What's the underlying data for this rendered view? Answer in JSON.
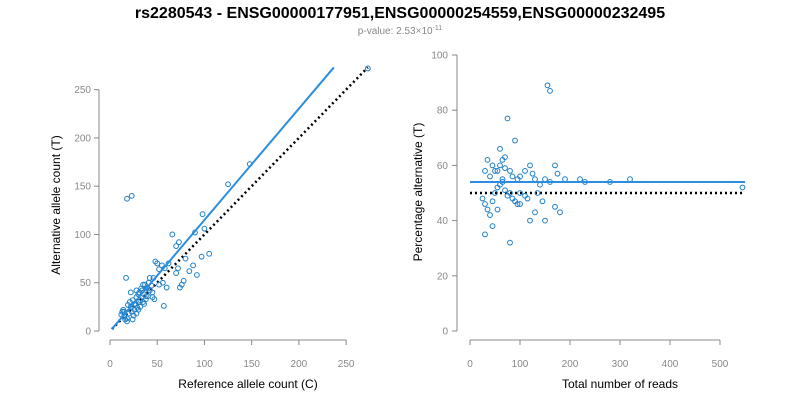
{
  "title": "rs2280543 - ENSG00000177951,ENSG00000254559,ENSG00000232495",
  "subtitle": {
    "prefix": "p-value: 2.53×10",
    "exponent": "-11"
  },
  "colors": {
    "points": "#1e7fc8",
    "fit": "#2b8ddf",
    "reference": "#000000",
    "axis": "#888888"
  },
  "chart_data": [
    {
      "type": "scatter",
      "xlabel": "Reference allele count (C)",
      "ylabel": "Alternative allele count (T)",
      "xlim": [
        0,
        270
      ],
      "ylim": [
        0,
        260
      ],
      "xticks": [
        "0",
        "50",
        "100",
        "150",
        "200",
        "250"
      ],
      "yticks": [
        "0",
        "50",
        "100",
        "150",
        "200",
        "250"
      ],
      "xtick_values": [
        0,
        50,
        100,
        150,
        200,
        250
      ],
      "ytick_values": [
        0,
        50,
        100,
        150,
        200,
        250
      ],
      "fit_line": {
        "x": [
          2,
          237
        ],
        "y": [
          2,
          273
        ]
      },
      "reference_line": {
        "x": [
          2,
          273
        ],
        "y": [
          2,
          273
        ]
      },
      "points": [
        [
          18,
          137
        ],
        [
          23,
          140
        ],
        [
          17,
          55
        ],
        [
          12,
          17
        ],
        [
          13,
          20
        ],
        [
          15,
          15
        ],
        [
          14,
          22
        ],
        [
          16,
          12
        ],
        [
          18,
          13
        ],
        [
          20,
          18
        ],
        [
          19,
          27
        ],
        [
          21,
          30
        ],
        [
          22,
          25
        ],
        [
          23,
          20
        ],
        [
          24,
          32
        ],
        [
          25,
          16
        ],
        [
          26,
          22
        ],
        [
          27,
          28
        ],
        [
          28,
          35
        ],
        [
          29,
          24
        ],
        [
          30,
          38
        ],
        [
          31,
          40
        ],
        [
          32,
          32
        ],
        [
          33,
          44
        ],
        [
          34,
          42
        ],
        [
          35,
          30
        ],
        [
          36,
          38
        ],
        [
          37,
          48
        ],
        [
          38,
          33
        ],
        [
          39,
          45
        ],
        [
          40,
          36
        ],
        [
          41,
          50
        ],
        [
          42,
          42
        ],
        [
          44,
          47
        ],
        [
          45,
          35
        ],
        [
          47,
          33
        ],
        [
          48,
          72
        ],
        [
          50,
          70
        ],
        [
          52,
          64
        ],
        [
          55,
          68
        ],
        [
          57,
          26
        ],
        [
          58,
          65
        ],
        [
          62,
          70
        ],
        [
          66,
          100
        ],
        [
          70,
          88
        ],
        [
          72,
          65
        ],
        [
          73,
          92
        ],
        [
          76,
          48
        ],
        [
          78,
          52
        ],
        [
          80,
          75
        ],
        [
          84,
          62
        ],
        [
          88,
          68
        ],
        [
          90,
          102
        ],
        [
          92,
          58
        ],
        [
          97,
          77
        ],
        [
          98,
          121
        ],
        [
          100,
          106
        ],
        [
          105,
          80
        ],
        [
          125,
          152
        ],
        [
          148,
          173
        ],
        [
          273,
          272
        ],
        [
          22,
          40
        ],
        [
          28,
          42
        ],
        [
          35,
          48
        ],
        [
          42,
          55
        ],
        [
          46,
          55
        ],
        [
          60,
          45
        ],
        [
          70,
          60
        ],
        [
          74,
          45
        ],
        [
          28,
          18
        ],
        [
          32,
          25
        ],
        [
          24,
          12
        ],
        [
          18,
          10
        ],
        [
          15,
          20
        ],
        [
          30,
          30
        ],
        [
          38,
          36
        ],
        [
          45,
          40
        ],
        [
          52,
          48
        ],
        [
          56,
          50
        ],
        [
          36,
          28
        ],
        [
          40,
          44
        ],
        [
          26,
          28
        ],
        [
          30,
          22
        ]
      ]
    },
    {
      "type": "scatter",
      "xlabel": "Total number of reads",
      "ylabel": "Percentage alternative (T)",
      "xlim": [
        0,
        550
      ],
      "ylim": [
        0,
        100
      ],
      "xticks": [
        "0",
        "100",
        "200",
        "300",
        "400",
        "500"
      ],
      "yticks": [
        "0",
        "20",
        "40",
        "60",
        "80",
        "100"
      ],
      "xtick_values": [
        0,
        100,
        200,
        300,
        400,
        500
      ],
      "ytick_values": [
        0,
        20,
        40,
        60,
        80,
        100
      ],
      "fit_line": {
        "x": [
          0,
          550
        ],
        "y": [
          54,
          54
        ]
      },
      "reference_line": {
        "x": [
          0,
          550
        ],
        "y": [
          50,
          50
        ]
      },
      "points": [
        [
          155,
          89
        ],
        [
          160,
          87
        ],
        [
          75,
          77
        ],
        [
          60,
          66
        ],
        [
          90,
          69
        ],
        [
          35,
          62
        ],
        [
          45,
          60
        ],
        [
          55,
          58
        ],
        [
          65,
          62
        ],
        [
          70,
          59
        ],
        [
          80,
          58
        ],
        [
          85,
          56
        ],
        [
          95,
          55
        ],
        [
          100,
          56
        ],
        [
          110,
          58
        ],
        [
          120,
          60
        ],
        [
          125,
          57
        ],
        [
          130,
          55
        ],
        [
          140,
          53
        ],
        [
          150,
          55
        ],
        [
          160,
          54
        ],
        [
          170,
          60
        ],
        [
          175,
          57
        ],
        [
          190,
          55
        ],
        [
          220,
          55
        ],
        [
          230,
          54
        ],
        [
          280,
          54
        ],
        [
          320,
          55
        ],
        [
          545,
          52
        ],
        [
          25,
          48
        ],
        [
          30,
          46
        ],
        [
          35,
          44
        ],
        [
          40,
          42
        ],
        [
          45,
          47
        ],
        [
          50,
          50
        ],
        [
          55,
          52
        ],
        [
          60,
          53
        ],
        [
          65,
          54
        ],
        [
          70,
          51
        ],
        [
          75,
          49
        ],
        [
          80,
          50
        ],
        [
          85,
          48
        ],
        [
          90,
          47
        ],
        [
          95,
          46
        ],
        [
          100,
          50
        ],
        [
          110,
          49
        ],
        [
          120,
          40
        ],
        [
          130,
          43
        ],
        [
          150,
          40
        ],
        [
          170,
          45
        ],
        [
          180,
          43
        ],
        [
          30,
          35
        ],
        [
          45,
          38
        ],
        [
          55,
          44
        ],
        [
          80,
          32
        ],
        [
          100,
          46
        ],
        [
          40,
          56
        ],
        [
          50,
          58
        ],
        [
          60,
          60
        ],
        [
          70,
          63
        ],
        [
          30,
          58
        ],
        [
          65,
          55
        ],
        [
          115,
          48
        ],
        [
          135,
          50
        ],
        [
          145,
          47
        ]
      ]
    }
  ]
}
